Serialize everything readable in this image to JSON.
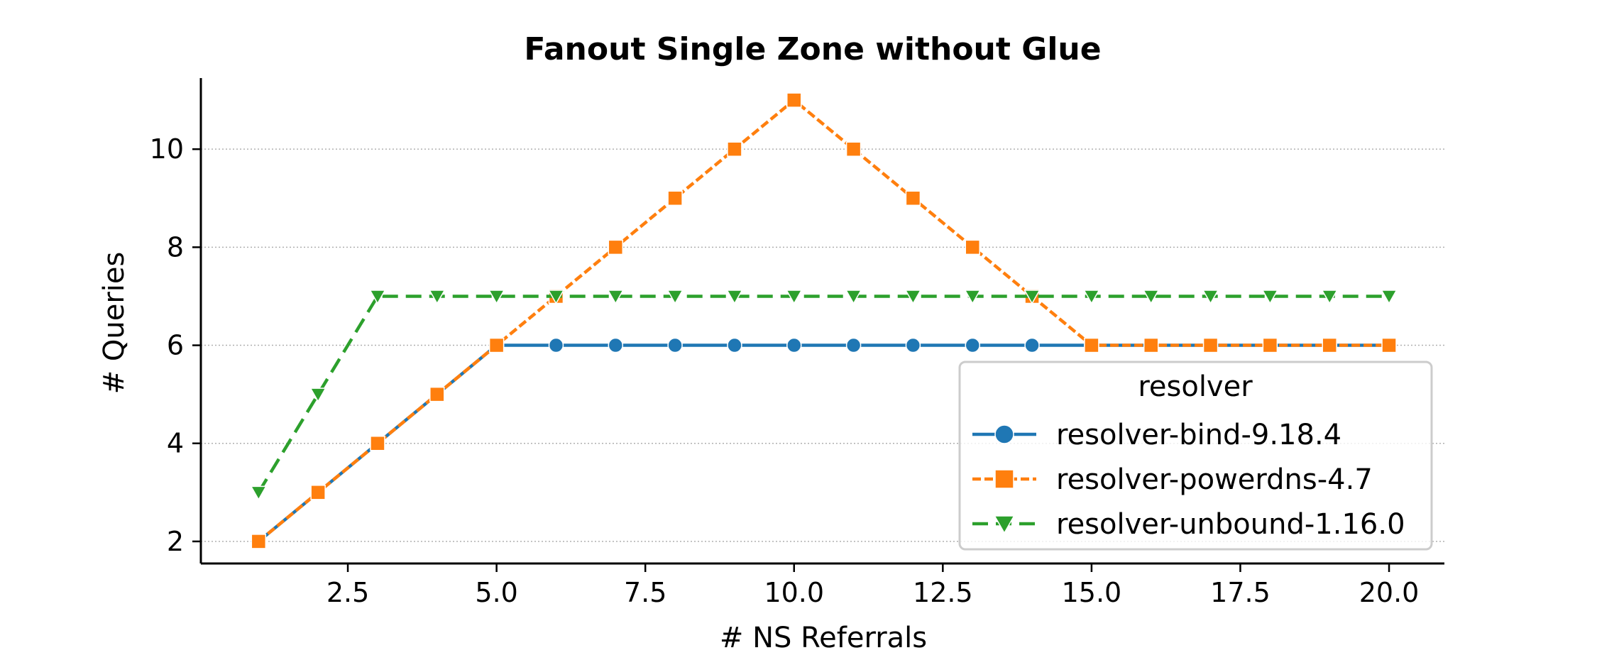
{
  "chart_data": {
    "type": "line",
    "title": "Fanout Single Zone without Glue",
    "xlabel": "# NS Referrals",
    "ylabel": "# Queries",
    "xlim": [
      0.03,
      20.93
    ],
    "ylim": [
      1.55,
      11.45
    ],
    "xticks": [
      "2.5",
      "5.0",
      "7.5",
      "10.0",
      "12.5",
      "15.0",
      "17.5",
      "20.0"
    ],
    "xtick_values": [
      2.5,
      5.0,
      7.5,
      10.0,
      12.5,
      15.0,
      17.5,
      20.0
    ],
    "yticks": [
      "2",
      "4",
      "6",
      "8",
      "10"
    ],
    "ytick_values": [
      2,
      4,
      6,
      8,
      10
    ],
    "grid": "horizontal dotted",
    "legend": {
      "title": "resolver",
      "placement": "lower-right"
    },
    "series": [
      {
        "name": "resolver-bind-9.18.4",
        "color": "#1f77b4",
        "marker": "circle",
        "linestyle": "solid",
        "x": [
          1,
          2,
          3,
          4,
          5,
          6,
          7,
          8,
          9,
          10,
          11,
          12,
          13,
          14,
          15,
          16,
          17,
          18,
          19,
          20
        ],
        "y": [
          2,
          3,
          4,
          5,
          6,
          6,
          6,
          6,
          6,
          6,
          6,
          6,
          6,
          6,
          6,
          6,
          6,
          6,
          6,
          6
        ]
      },
      {
        "name": "resolver-powerdns-4.7",
        "color": "#ff7f0e",
        "marker": "square",
        "linestyle": "dashed",
        "x": [
          1,
          2,
          3,
          4,
          5,
          6,
          7,
          8,
          9,
          10,
          11,
          12,
          13,
          14,
          15,
          16,
          17,
          18,
          19,
          20
        ],
        "y": [
          2,
          3,
          4,
          5,
          6,
          7,
          8,
          9,
          10,
          11,
          10,
          9,
          8,
          7,
          6,
          6,
          6,
          6,
          6,
          6
        ]
      },
      {
        "name": "resolver-unbound-1.16.0",
        "color": "#2ca02c",
        "marker": "triangle-down",
        "linestyle": "long-dashed",
        "x": [
          1,
          2,
          3,
          4,
          5,
          6,
          7,
          8,
          9,
          10,
          11,
          12,
          13,
          14,
          15,
          16,
          17,
          18,
          19,
          20
        ],
        "y": [
          3,
          5,
          7,
          7,
          7,
          7,
          7,
          7,
          7,
          7,
          7,
          7,
          7,
          7,
          7,
          7,
          7,
          7,
          7,
          7
        ]
      }
    ]
  }
}
